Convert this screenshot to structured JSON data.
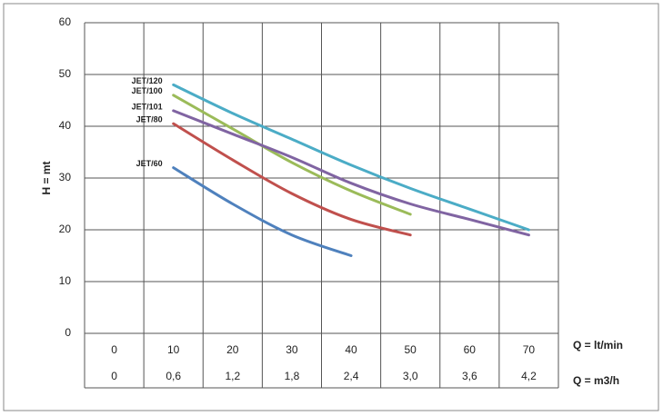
{
  "chart_data": {
    "type": "line",
    "y_label": "H = mt",
    "x_label": "Q = lt/min",
    "x2_label": "Q = m3/h",
    "x": [
      10,
      20,
      30,
      40,
      50,
      60,
      70
    ],
    "xlim": [
      -5,
      75
    ],
    "xticks": [
      0,
      10,
      20,
      30,
      40,
      50,
      60,
      70
    ],
    "x2lim": [
      -0.3,
      4.5
    ],
    "x2ticks": [
      0,
      {
        "value": 0.6,
        "label": "0,6"
      },
      {
        "value": 1.2,
        "label": "1,2"
      },
      {
        "value": 1.8,
        "label": "1,8"
      },
      {
        "value": 2.4,
        "label": "2,4"
      },
      {
        "value": 3.0,
        "label": "3,0"
      },
      {
        "value": 3.6,
        "label": "3,6"
      },
      {
        "value": 4.2,
        "label": "4,2"
      }
    ],
    "ylim": [
      0,
      60
    ],
    "yticks": [
      0,
      10,
      20,
      30,
      40,
      50,
      60
    ],
    "grid": true,
    "series": [
      {
        "name": "JET/120",
        "color": "#4bacc6",
        "values": [
          48,
          42.5,
          37.5,
          32.5,
          28,
          24,
          20
        ]
      },
      {
        "name": "JET/100",
        "color": "#9bbb59",
        "values": [
          46,
          39.5,
          33,
          27.5,
          23,
          null,
          null
        ]
      },
      {
        "name": "JET/101",
        "color": "#8064a2",
        "values": [
          43,
          38.5,
          34,
          29,
          25,
          22,
          19
        ]
      },
      {
        "name": "JET/80",
        "color": "#c0504d",
        "values": [
          40.5,
          33.5,
          27,
          22,
          19,
          null,
          null
        ]
      },
      {
        "name": "JET/60",
        "color": "#4f81bd",
        "values": [
          32,
          25,
          19,
          15,
          null,
          null,
          null
        ]
      }
    ]
  }
}
